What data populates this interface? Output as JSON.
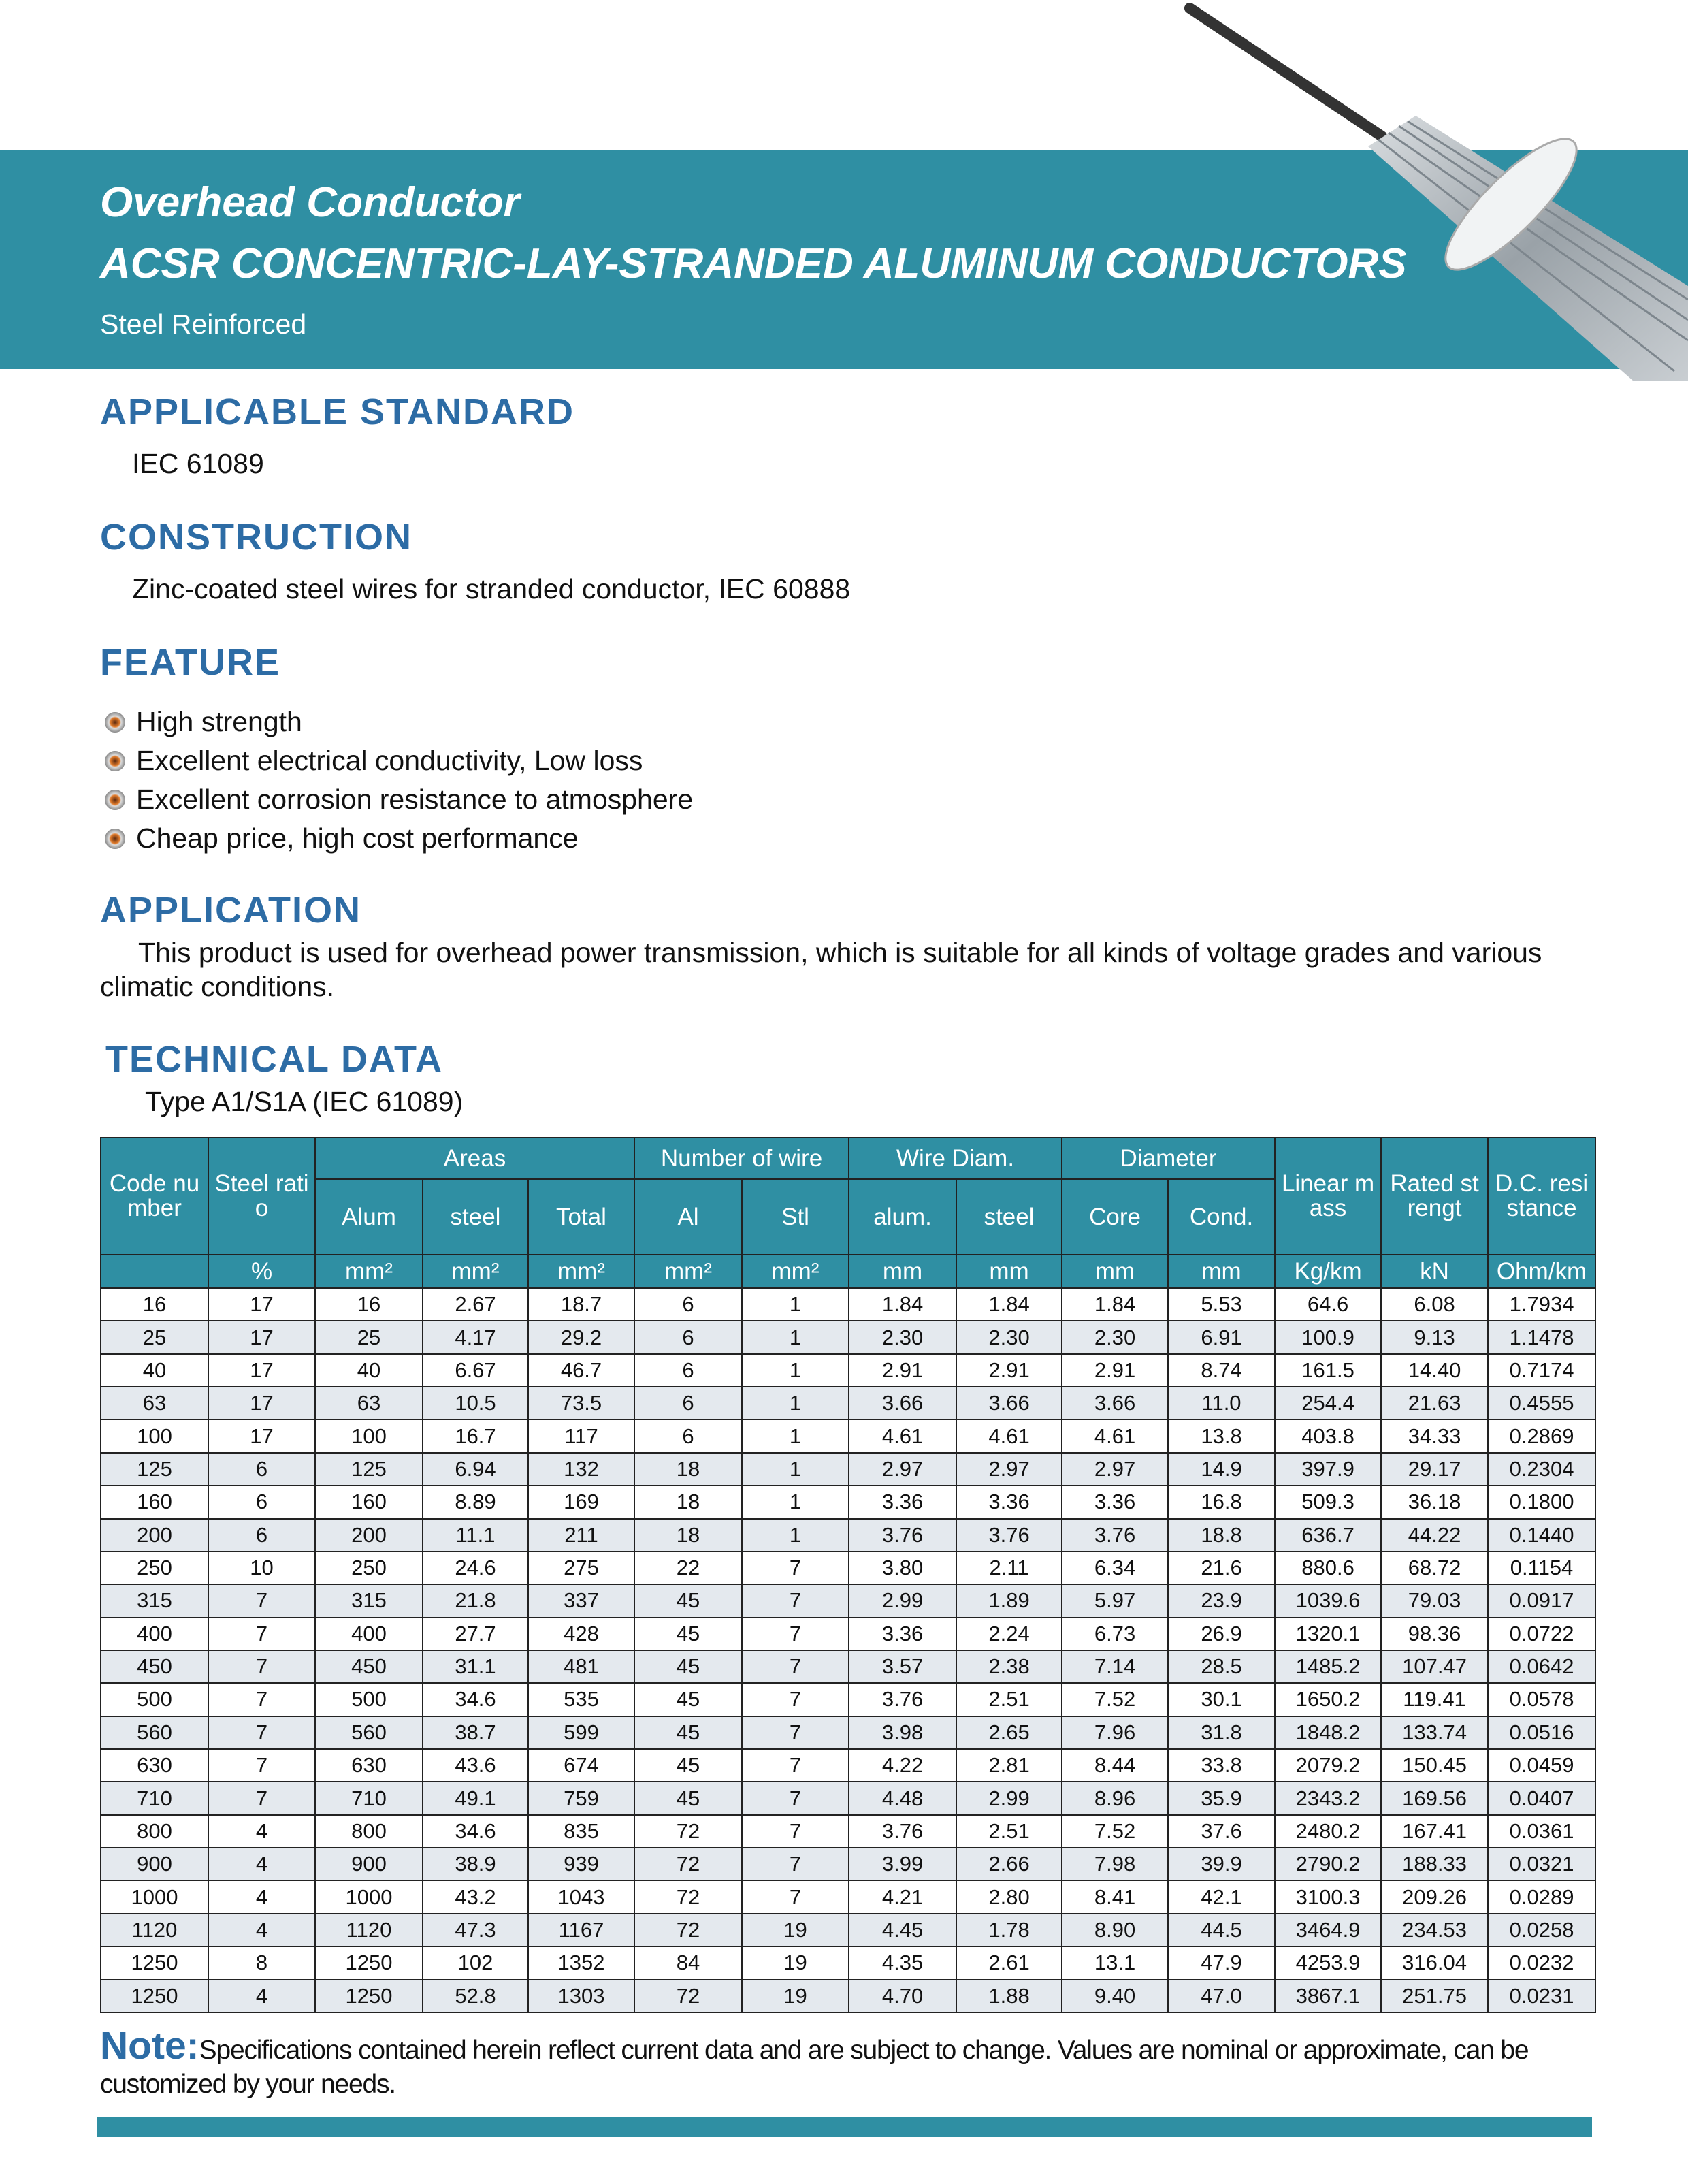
{
  "header": {
    "title": "Overhead Conductor",
    "subtitle": "ACSR CONCENTRIC-LAY-STRANDED ALUMINUM CONDUCTORS",
    "tagline": "Steel Reinforced"
  },
  "standard": {
    "heading": "APPLICABLE STANDARD",
    "text": "IEC 61089"
  },
  "construction": {
    "heading": "CONSTRUCTION",
    "text": "Zinc-coated steel wires for stranded conductor, IEC 60888"
  },
  "feature": {
    "heading": "FEATURE",
    "items": [
      "High strength",
      "Excellent electrical conductivity, Low loss",
      "Excellent corrosion resistance to atmosphere",
      "Cheap price, high cost performance"
    ]
  },
  "application": {
    "heading": "APPLICATION",
    "text": "This product is used for overhead power transmission, which is suitable for all kinds of voltage grades and various climatic conditions."
  },
  "technical": {
    "heading": "TECHNICAL DATA",
    "type": "Type A1/S1A (IEC 61089)"
  },
  "table": {
    "columns": [
      {
        "label": "Code number"
      },
      {
        "label": "Steel ratio"
      },
      {
        "label": "Areas",
        "sub": [
          "Alum",
          "steel",
          "Total"
        ]
      },
      {
        "label": "Number of wire",
        "sub": [
          "Al",
          "Stl"
        ]
      },
      {
        "label": "Wire Diam.",
        "sub": [
          "alum.",
          "steel"
        ]
      },
      {
        "label": "Diameter",
        "sub": [
          "Core",
          "Cond."
        ]
      },
      {
        "label": "Linear mass"
      },
      {
        "label": "Rated strengt"
      },
      {
        "label": "D.C. resistance"
      }
    ],
    "units": [
      "%",
      "mm²",
      "mm²",
      "mm²",
      "mm²",
      "mm²",
      "mm",
      "mm",
      "mm",
      "mm",
      "Kg/km",
      "kN",
      "Ohm/km"
    ],
    "rows": [
      [
        "16",
        "17",
        "16",
        "2.67",
        "18.7",
        "6",
        "1",
        "1.84",
        "1.84",
        "1.84",
        "5.53",
        "64.6",
        "6.08",
        "1.7934"
      ],
      [
        "25",
        "17",
        "25",
        "4.17",
        "29.2",
        "6",
        "1",
        "2.30",
        "2.30",
        "2.30",
        "6.91",
        "100.9",
        "9.13",
        "1.1478"
      ],
      [
        "40",
        "17",
        "40",
        "6.67",
        "46.7",
        "6",
        "1",
        "2.91",
        "2.91",
        "2.91",
        "8.74",
        "161.5",
        "14.40",
        "0.7174"
      ],
      [
        "63",
        "17",
        "63",
        "10.5",
        "73.5",
        "6",
        "1",
        "3.66",
        "3.66",
        "3.66",
        "11.0",
        "254.4",
        "21.63",
        "0.4555"
      ],
      [
        "100",
        "17",
        "100",
        "16.7",
        "117",
        "6",
        "1",
        "4.61",
        "4.61",
        "4.61",
        "13.8",
        "403.8",
        "34.33",
        "0.2869"
      ],
      [
        "125",
        "6",
        "125",
        "6.94",
        "132",
        "18",
        "1",
        "2.97",
        "2.97",
        "2.97",
        "14.9",
        "397.9",
        "29.17",
        "0.2304"
      ],
      [
        "160",
        "6",
        "160",
        "8.89",
        "169",
        "18",
        "1",
        "3.36",
        "3.36",
        "3.36",
        "16.8",
        "509.3",
        "36.18",
        "0.1800"
      ],
      [
        "200",
        "6",
        "200",
        "11.1",
        "211",
        "18",
        "1",
        "3.76",
        "3.76",
        "3.76",
        "18.8",
        "636.7",
        "44.22",
        "0.1440"
      ],
      [
        "250",
        "10",
        "250",
        "24.6",
        "275",
        "22",
        "7",
        "3.80",
        "2.11",
        "6.34",
        "21.6",
        "880.6",
        "68.72",
        "0.1154"
      ],
      [
        "315",
        "7",
        "315",
        "21.8",
        "337",
        "45",
        "7",
        "2.99",
        "1.89",
        "5.97",
        "23.9",
        "1039.6",
        "79.03",
        "0.0917"
      ],
      [
        "400",
        "7",
        "400",
        "27.7",
        "428",
        "45",
        "7",
        "3.36",
        "2.24",
        "6.73",
        "26.9",
        "1320.1",
        "98.36",
        "0.0722"
      ],
      [
        "450",
        "7",
        "450",
        "31.1",
        "481",
        "45",
        "7",
        "3.57",
        "2.38",
        "7.14",
        "28.5",
        "1485.2",
        "107.47",
        "0.0642"
      ],
      [
        "500",
        "7",
        "500",
        "34.6",
        "535",
        "45",
        "7",
        "3.76",
        "2.51",
        "7.52",
        "30.1",
        "1650.2",
        "119.41",
        "0.0578"
      ],
      [
        "560",
        "7",
        "560",
        "38.7",
        "599",
        "45",
        "7",
        "3.98",
        "2.65",
        "7.96",
        "31.8",
        "1848.2",
        "133.74",
        "0.0516"
      ],
      [
        "630",
        "7",
        "630",
        "43.6",
        "674",
        "45",
        "7",
        "4.22",
        "2.81",
        "8.44",
        "33.8",
        "2079.2",
        "150.45",
        "0.0459"
      ],
      [
        "710",
        "7",
        "710",
        "49.1",
        "759",
        "45",
        "7",
        "4.48",
        "2.99",
        "8.96",
        "35.9",
        "2343.2",
        "169.56",
        "0.0407"
      ],
      [
        "800",
        "4",
        "800",
        "34.6",
        "835",
        "72",
        "7",
        "3.76",
        "2.51",
        "7.52",
        "37.6",
        "2480.2",
        "167.41",
        "0.0361"
      ],
      [
        "900",
        "4",
        "900",
        "38.9",
        "939",
        "72",
        "7",
        "3.99",
        "2.66",
        "7.98",
        "39.9",
        "2790.2",
        "188.33",
        "0.0321"
      ],
      [
        "1000",
        "4",
        "1000",
        "43.2",
        "1043",
        "72",
        "7",
        "4.21",
        "2.80",
        "8.41",
        "42.1",
        "3100.3",
        "209.26",
        "0.0289"
      ],
      [
        "1120",
        "4",
        "1120",
        "47.3",
        "1167",
        "72",
        "19",
        "4.45",
        "1.78",
        "8.90",
        "44.5",
        "3464.9",
        "234.53",
        "0.0258"
      ],
      [
        "1250",
        "8",
        "1250",
        "102",
        "1352",
        "84",
        "19",
        "4.35",
        "2.61",
        "13.1",
        "47.9",
        "4253.9",
        "316.04",
        "0.0232"
      ],
      [
        "1250",
        "4",
        "1250",
        "52.8",
        "1303",
        "72",
        "19",
        "4.70",
        "1.88",
        "9.40",
        "47.0",
        "3867.1",
        "251.75",
        "0.0231"
      ]
    ]
  },
  "note": {
    "label": "Note:",
    "text": "Specifications contained herein reflect current data and are subject to change. Values are nominal or approximate, can be customized by your needs."
  }
}
